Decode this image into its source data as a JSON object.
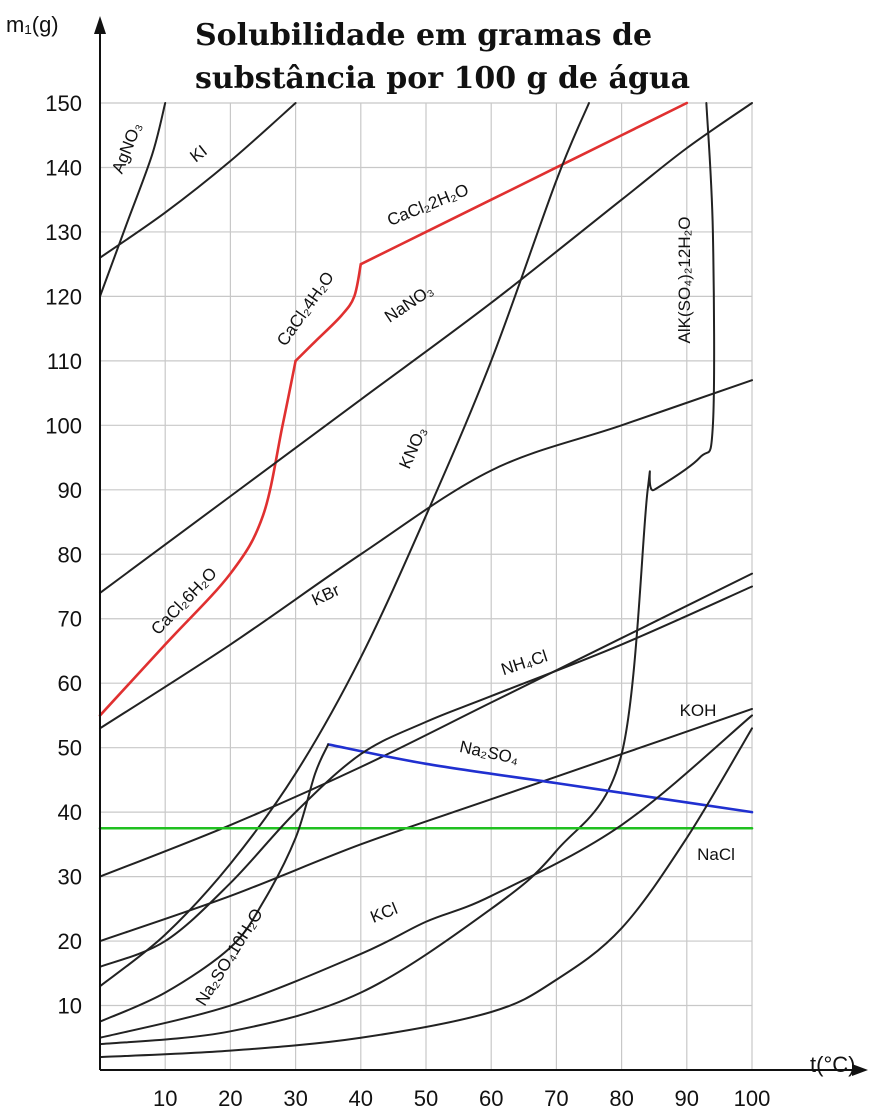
{
  "chart_data": {
    "type": "line",
    "title_line1": "Solubilidade em gramas de",
    "title_line2": "substância por 100 g de água",
    "ylabel": "m₁(g)",
    "xlabel": "t(°C)",
    "xlim": [
      0,
      100
    ],
    "ylim": [
      0,
      150
    ],
    "x_ticks": [
      10,
      20,
      30,
      40,
      50,
      60,
      70,
      80,
      90,
      100
    ],
    "y_ticks": [
      10,
      20,
      30,
      40,
      50,
      60,
      70,
      80,
      90,
      100,
      110,
      120,
      130,
      140,
      150
    ],
    "grid": true,
    "colors": {
      "default": "#222222",
      "cacl2": "#e03030",
      "na2so4": "#2030d0",
      "nacl": "#20c020"
    },
    "series": [
      {
        "name": "AgNO₃",
        "color": "default",
        "points": [
          [
            0,
            120
          ],
          [
            4,
            131
          ],
          [
            8,
            142
          ],
          [
            10,
            150
          ]
        ]
      },
      {
        "name": "KI",
        "color": "default",
        "points": [
          [
            0,
            126
          ],
          [
            10,
            133
          ],
          [
            20,
            141
          ],
          [
            30,
            150
          ]
        ]
      },
      {
        "name": "CaCl₂6H₂O",
        "color": "cacl2",
        "points": [
          [
            0,
            55
          ],
          [
            10,
            66
          ],
          [
            20,
            77
          ],
          [
            25,
            86
          ],
          [
            28,
            100
          ],
          [
            30,
            110
          ]
        ]
      },
      {
        "name": "CaCl₂4H₂O",
        "color": "cacl2",
        "points": [
          [
            30,
            110
          ],
          [
            33,
            113
          ],
          [
            37,
            117
          ],
          [
            39,
            120
          ],
          [
            40,
            125
          ]
        ]
      },
      {
        "name": "CaCl₂2H₂O",
        "color": "cacl2",
        "points": [
          [
            40,
            125
          ],
          [
            50,
            130
          ],
          [
            60,
            135
          ],
          [
            70,
            140
          ],
          [
            80,
            145
          ],
          [
            90,
            150
          ]
        ]
      },
      {
        "name": "NaNO₃",
        "color": "default",
        "points": [
          [
            0,
            74
          ],
          [
            20,
            89
          ],
          [
            40,
            104
          ],
          [
            60,
            119
          ],
          [
            80,
            135
          ],
          [
            90,
            143
          ],
          [
            100,
            150
          ]
        ]
      },
      {
        "name": "KNO₃",
        "color": "default",
        "points": [
          [
            0,
            13
          ],
          [
            10,
            21
          ],
          [
            20,
            32
          ],
          [
            30,
            46
          ],
          [
            40,
            64
          ],
          [
            50,
            86
          ],
          [
            60,
            110
          ],
          [
            70,
            138
          ],
          [
            75,
            150
          ]
        ]
      },
      {
        "name": "AlK(SO₄)₂12H₂O",
        "color": "default",
        "points": [
          [
            0,
            4
          ],
          [
            20,
            6
          ],
          [
            40,
            12
          ],
          [
            60,
            25
          ],
          [
            70,
            34
          ],
          [
            80,
            49
          ],
          [
            84,
            90
          ],
          [
            85,
            90
          ],
          [
            92,
            95
          ],
          [
            94,
            100
          ],
          [
            94,
            130
          ],
          [
            93,
            150
          ]
        ]
      },
      {
        "name": "KBr",
        "color": "default",
        "points": [
          [
            0,
            53
          ],
          [
            20,
            66
          ],
          [
            40,
            80
          ],
          [
            60,
            93
          ],
          [
            80,
            100
          ],
          [
            100,
            107
          ]
        ]
      },
      {
        "name": "NH₄Cl",
        "color": "default",
        "points": [
          [
            0,
            30
          ],
          [
            20,
            38
          ],
          [
            40,
            47
          ],
          [
            60,
            57
          ],
          [
            80,
            67
          ],
          [
            100,
            77
          ]
        ]
      },
      {
        "name": "KOH",
        "color": "default",
        "points": [
          [
            0,
            20
          ],
          [
            20,
            27
          ],
          [
            40,
            35
          ],
          [
            60,
            42
          ],
          [
            80,
            49
          ],
          [
            100,
            56
          ]
        ]
      },
      {
        "name": "Na₂SO₄",
        "color": "na2so4",
        "points": [
          [
            35,
            50.5
          ],
          [
            50,
            47.5
          ],
          [
            70,
            44.5
          ],
          [
            90,
            41.5
          ],
          [
            100,
            40
          ]
        ]
      },
      {
        "name": "NaCl",
        "color": "nacl",
        "points": [
          [
            0,
            37.5
          ],
          [
            100,
            37.5
          ]
        ]
      },
      {
        "name": "KCl",
        "color": "default",
        "points": [
          [
            0,
            5
          ],
          [
            20,
            10
          ],
          [
            40,
            18
          ],
          [
            50,
            23
          ],
          [
            60,
            27
          ],
          [
            80,
            38
          ],
          [
            100,
            55
          ]
        ]
      },
      {
        "name": "Na₂SO₄10H₂O",
        "color": "default",
        "points": [
          [
            0,
            7.5
          ],
          [
            10,
            12
          ],
          [
            20,
            19
          ],
          [
            25,
            26
          ],
          [
            30,
            36
          ],
          [
            33,
            46
          ],
          [
            35,
            50.5
          ]
        ]
      },
      {
        "name": "",
        "color": "default",
        "points": [
          [
            0,
            16
          ],
          [
            10,
            20
          ],
          [
            20,
            29
          ],
          [
            30,
            40
          ],
          [
            40,
            49
          ],
          [
            50,
            54
          ],
          [
            60,
            58
          ],
          [
            80,
            66
          ],
          [
            100,
            75
          ]
        ]
      },
      {
        "name": "",
        "color": "default",
        "points": [
          [
            0,
            2
          ],
          [
            20,
            3
          ],
          [
            40,
            5
          ],
          [
            60,
            9
          ],
          [
            70,
            14
          ],
          [
            80,
            22
          ],
          [
            90,
            36
          ],
          [
            100,
            53
          ]
        ]
      }
    ]
  }
}
